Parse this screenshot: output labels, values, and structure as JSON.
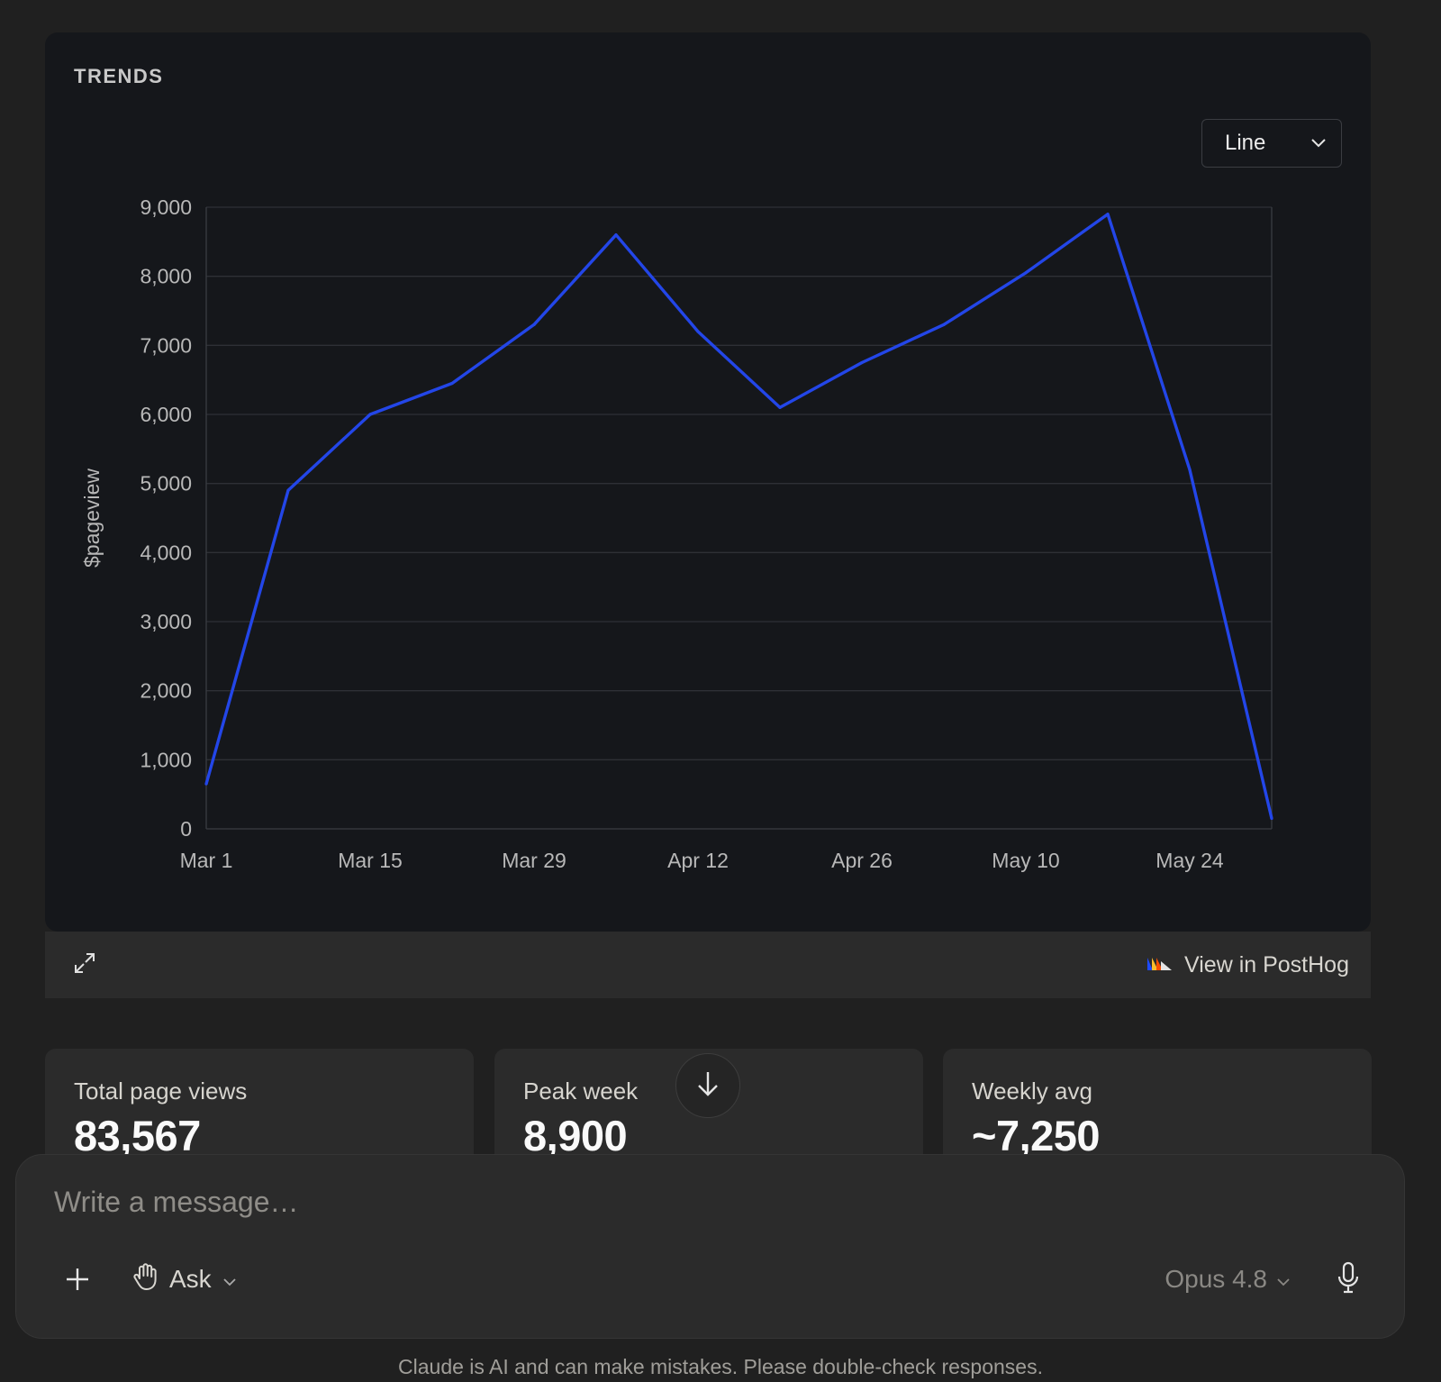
{
  "trends_card": {
    "heading": "TRENDS",
    "chart_type_selector": "Line"
  },
  "chart_data": {
    "type": "line",
    "title": "",
    "xlabel": "",
    "ylabel": "$pageview",
    "ylim": [
      0,
      9000
    ],
    "yticks": [
      "0",
      "1,000",
      "2,000",
      "3,000",
      "4,000",
      "5,000",
      "6,000",
      "7,000",
      "8,000",
      "9,000"
    ],
    "xtick_labels": [
      "Mar 1",
      "Mar 15",
      "Mar 29",
      "Apr 12",
      "Apr 26",
      "May 10",
      "May 24"
    ],
    "x": [
      "Mar 1",
      "Mar 8",
      "Mar 15",
      "Mar 22",
      "Mar 29",
      "Apr 5",
      "Apr 12",
      "Apr 19",
      "Apr 26",
      "May 3",
      "May 10",
      "May 17",
      "May 24",
      "May 31"
    ],
    "series": [
      {
        "color": "#2346e8",
        "values": [
          650,
          4900,
          6000,
          6450,
          7300,
          8600,
          7200,
          6100,
          6750,
          7300,
          8050,
          8900,
          5200,
          150
        ]
      }
    ],
    "grid": true,
    "legend": "none"
  },
  "chart_footer": {
    "view_link": "View in PostHog"
  },
  "stats": [
    {
      "label": "Total page views",
      "value": "83,567"
    },
    {
      "label": "Peak week",
      "value": "8,900"
    },
    {
      "label": "Weekly avg",
      "value": "~7,250"
    }
  ],
  "composer": {
    "placeholder": "Write a message…",
    "mode": "Ask",
    "model": "Opus 4.8"
  },
  "disclaimer": "Claude is AI and can make mistakes. Please double-check responses.",
  "icons": {
    "expand": "expand-icon",
    "posthog": "posthog-logo-icon",
    "scroll": "arrow-down-icon",
    "plus": "plus-icon",
    "mode": "hand-icon",
    "chevron": "chevron-down-icon",
    "mic": "microphone-icon"
  }
}
